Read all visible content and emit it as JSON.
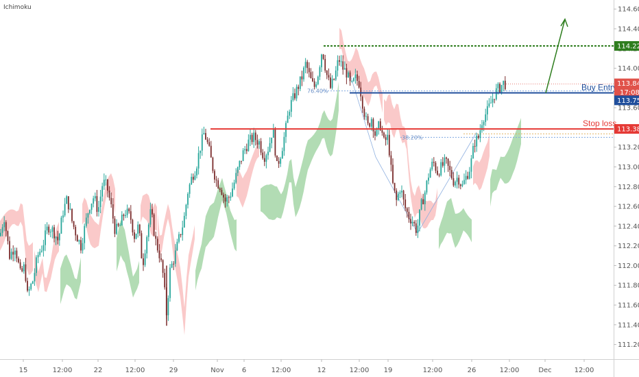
{
  "indicator": {
    "label": "Ichimoku"
  },
  "colors": {
    "up": "#26a69a",
    "down": "#7a2b2b",
    "cloud_bull": "#a5d6a7",
    "cloud_bear": "#f9c0c0",
    "target": "#2e7d1e",
    "entry": "#1f4e9c",
    "stop": "#e53935",
    "last": "#e0524a"
  },
  "chart_data": {
    "type": "candlestick",
    "x_ticks": [
      "15",
      "12:00",
      "22",
      "12:00",
      "29",
      "Nov",
      "6",
      "12:00",
      "12",
      "12:00",
      "19",
      "12:00",
      "26",
      "12:00",
      "Dec",
      "12:00"
    ],
    "y_ticks": [
      "111.200",
      "111.400",
      "111.600",
      "111.800",
      "112.000",
      "112.200",
      "112.400",
      "112.600",
      "112.800",
      "113.000",
      "113.200",
      "113.400",
      "113.600",
      "113.800",
      "114.000",
      "114.200",
      "114.400",
      "114.600"
    ],
    "ylim": [
      111.1,
      114.65
    ],
    "levels": {
      "target": {
        "value": 114.226,
        "label": "114.226"
      },
      "entry": {
        "value": 113.75,
        "label": "113.750",
        "text": "Buy Entry"
      },
      "stop": {
        "value": 113.385,
        "label": "113.385",
        "text": "Stop loss"
      }
    },
    "last_price": {
      "value": 113.84,
      "label": "113.840",
      "countdown": "17:08"
    },
    "fib_labels": {
      "upper": "76.40%",
      "lower": "38.20%"
    },
    "path": [
      [
        0,
        112.3
      ],
      [
        6,
        112.5
      ],
      [
        14,
        112.1
      ],
      [
        22,
        112.2
      ],
      [
        30,
        111.9
      ],
      [
        36,
        112.0
      ],
      [
        40,
        111.7
      ],
      [
        48,
        111.85
      ],
      [
        55,
        112.1
      ],
      [
        62,
        112.2
      ],
      [
        70,
        112.4
      ],
      [
        78,
        112.35
      ],
      [
        85,
        112.25
      ],
      [
        92,
        112.55
      ],
      [
        98,
        112.68
      ],
      [
        105,
        112.45
      ],
      [
        112,
        112.3
      ],
      [
        118,
        112.2
      ],
      [
        124,
        112.4
      ],
      [
        130,
        112.6
      ],
      [
        137,
        112.7
      ],
      [
        143,
        112.55
      ],
      [
        150,
        112.85
      ],
      [
        156,
        112.8
      ],
      [
        162,
        112.6
      ],
      [
        168,
        112.35
      ],
      [
        175,
        112.4
      ],
      [
        182,
        112.55
      ],
      [
        190,
        112.5
      ],
      [
        196,
        112.3
      ],
      [
        202,
        112.4
      ],
      [
        208,
        112.0
      ],
      [
        214,
        112.3
      ],
      [
        220,
        112.55
      ],
      [
        227,
        112.25
      ],
      [
        233,
        112.1
      ],
      [
        238,
        111.9
      ],
      [
        243,
        111.5
      ],
      [
        248,
        111.95
      ],
      [
        255,
        112.1
      ],
      [
        262,
        112.3
      ],
      [
        268,
        112.45
      ],
      [
        274,
        112.75
      ],
      [
        280,
        112.9
      ],
      [
        286,
        113.0
      ],
      [
        292,
        113.2
      ],
      [
        298,
        113.35
      ],
      [
        304,
        113.2
      ],
      [
        310,
        113.0
      ],
      [
        316,
        112.85
      ],
      [
        322,
        112.8
      ],
      [
        328,
        112.65
      ],
      [
        335,
        112.7
      ],
      [
        342,
        112.85
      ],
      [
        348,
        113.0
      ],
      [
        355,
        113.15
      ],
      [
        362,
        113.25
      ],
      [
        370,
        113.3
      ],
      [
        378,
        113.25
      ],
      [
        385,
        113.1
      ],
      [
        392,
        113.2
      ],
      [
        398,
        113.4
      ],
      [
        404,
        113.0
      ],
      [
        410,
        113.15
      ],
      [
        416,
        113.35
      ],
      [
        422,
        113.6
      ],
      [
        428,
        113.7
      ],
      [
        434,
        113.8
      ],
      [
        440,
        113.9
      ],
      [
        446,
        114.05
      ],
      [
        452,
        113.9
      ],
      [
        458,
        113.8
      ],
      [
        464,
        113.95
      ],
      [
        470,
        114.2
      ],
      [
        476,
        113.95
      ],
      [
        482,
        113.8
      ],
      [
        488,
        113.9
      ],
      [
        494,
        114.1
      ],
      [
        500,
        114.0
      ],
      [
        506,
        113.95
      ],
      [
        512,
        113.8
      ],
      [
        518,
        113.9
      ],
      [
        524,
        113.85
      ],
      [
        530,
        113.6
      ],
      [
        536,
        113.4
      ],
      [
        542,
        113.5
      ],
      [
        548,
        113.3
      ],
      [
        554,
        113.45
      ],
      [
        560,
        113.25
      ],
      [
        566,
        113.3
      ],
      [
        572,
        112.85
      ],
      [
        578,
        112.65
      ],
      [
        584,
        112.8
      ],
      [
        590,
        112.6
      ],
      [
        596,
        112.5
      ],
      [
        602,
        112.45
      ],
      [
        608,
        112.35
      ],
      [
        614,
        112.6
      ],
      [
        620,
        112.75
      ],
      [
        626,
        112.95
      ],
      [
        632,
        113.05
      ],
      [
        638,
        112.95
      ],
      [
        644,
        113.0
      ],
      [
        650,
        113.05
      ],
      [
        656,
        112.95
      ],
      [
        662,
        112.85
      ],
      [
        668,
        112.9
      ],
      [
        674,
        112.8
      ],
      [
        680,
        112.9
      ],
      [
        686,
        113.0
      ],
      [
        692,
        113.25
      ],
      [
        698,
        113.3
      ],
      [
        704,
        113.5
      ],
      [
        710,
        113.55
      ],
      [
        716,
        113.65
      ],
      [
        722,
        113.75
      ],
      [
        728,
        113.8
      ],
      [
        734,
        113.85
      ],
      [
        738,
        113.84
      ]
    ]
  }
}
